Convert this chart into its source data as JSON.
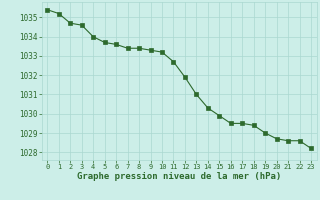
{
  "x": [
    0,
    1,
    2,
    3,
    4,
    5,
    6,
    7,
    8,
    9,
    10,
    11,
    12,
    13,
    14,
    15,
    16,
    17,
    18,
    19,
    20,
    21,
    22,
    23
  ],
  "y": [
    1035.4,
    1035.2,
    1034.7,
    1034.6,
    1034.0,
    1033.7,
    1033.6,
    1033.4,
    1033.4,
    1033.3,
    1033.2,
    1032.7,
    1031.9,
    1031.0,
    1030.3,
    1029.9,
    1029.5,
    1029.5,
    1029.4,
    1029.0,
    1028.7,
    1028.6,
    1028.6,
    1028.2
  ],
  "line_color": "#2d6a2d",
  "marker_color": "#2d6a2d",
  "bg_color": "#cceee8",
  "grid_color": "#aad8d0",
  "xlabel": "Graphe pression niveau de la mer (hPa)",
  "xlabel_color": "#2d6a2d",
  "tick_color": "#2d6a2d",
  "ylim": [
    1027.6,
    1035.8
  ],
  "yticks": [
    1028,
    1029,
    1030,
    1031,
    1032,
    1033,
    1034,
    1035
  ],
  "xticks": [
    0,
    1,
    2,
    3,
    4,
    5,
    6,
    7,
    8,
    9,
    10,
    11,
    12,
    13,
    14,
    15,
    16,
    17,
    18,
    19,
    20,
    21,
    22,
    23
  ]
}
